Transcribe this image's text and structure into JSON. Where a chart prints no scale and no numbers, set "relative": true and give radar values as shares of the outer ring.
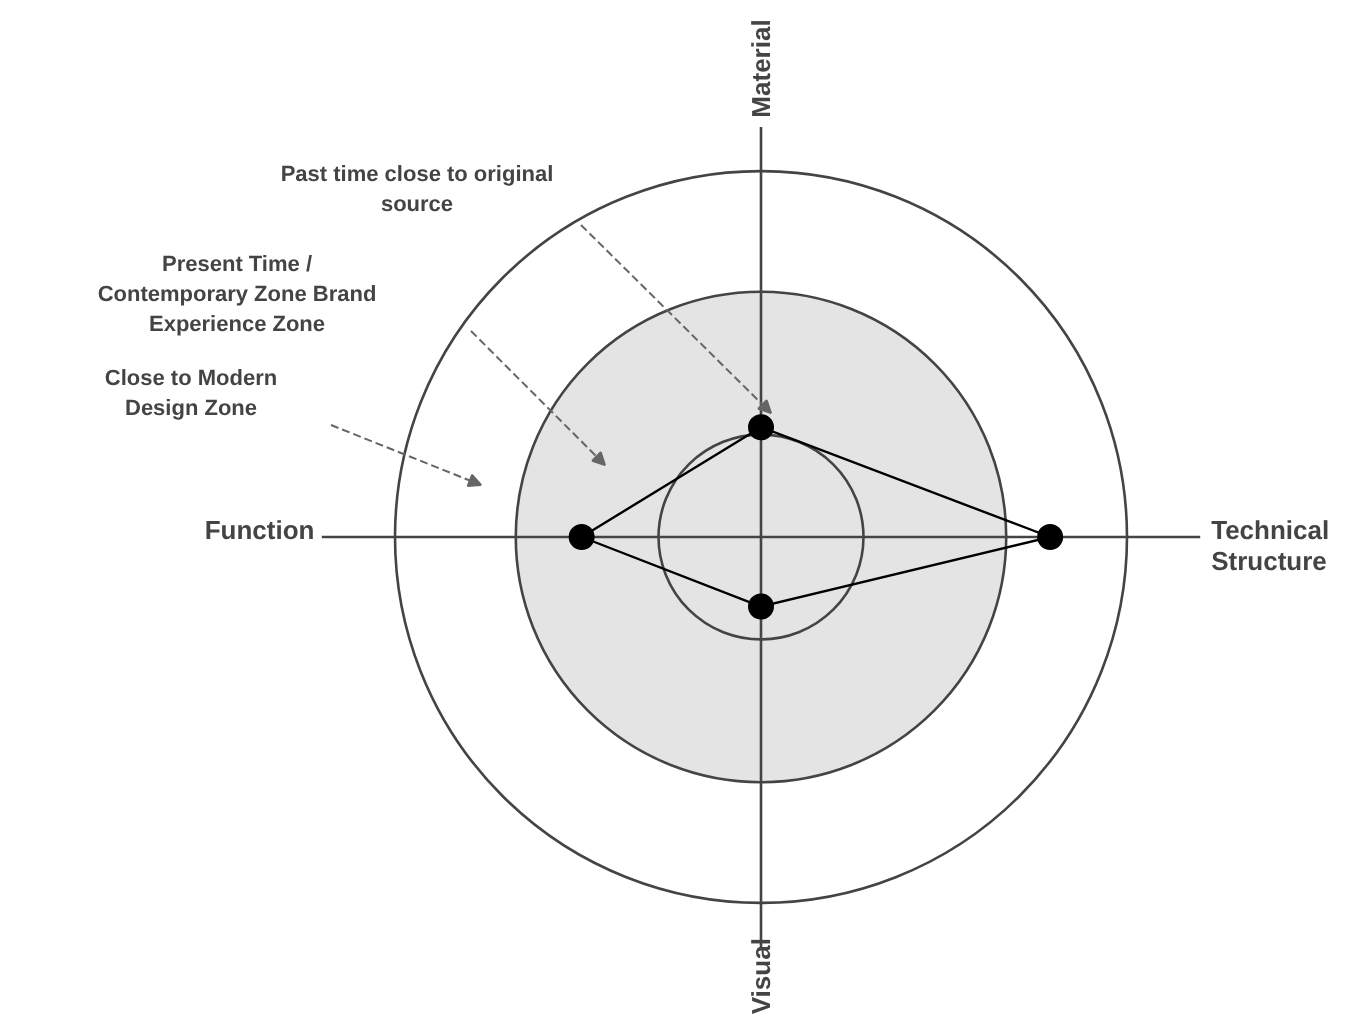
{
  "chart_data": {
    "type": "radar",
    "relative": true,
    "categories": [
      "Material",
      "Technical Structure",
      "Visual",
      "Function"
    ],
    "series": [
      {
        "color": "#000000",
        "values": [
          0.3,
          0.79,
          0.19,
          0.49
        ]
      }
    ],
    "marker": "circle",
    "line_style": "solid",
    "grid": true,
    "annotations": [
      "Past time close to original source",
      "Present Time / Contemporary Zone Brand Experience Zone",
      "Close to Modern Design Zone"
    ]
  }
}
